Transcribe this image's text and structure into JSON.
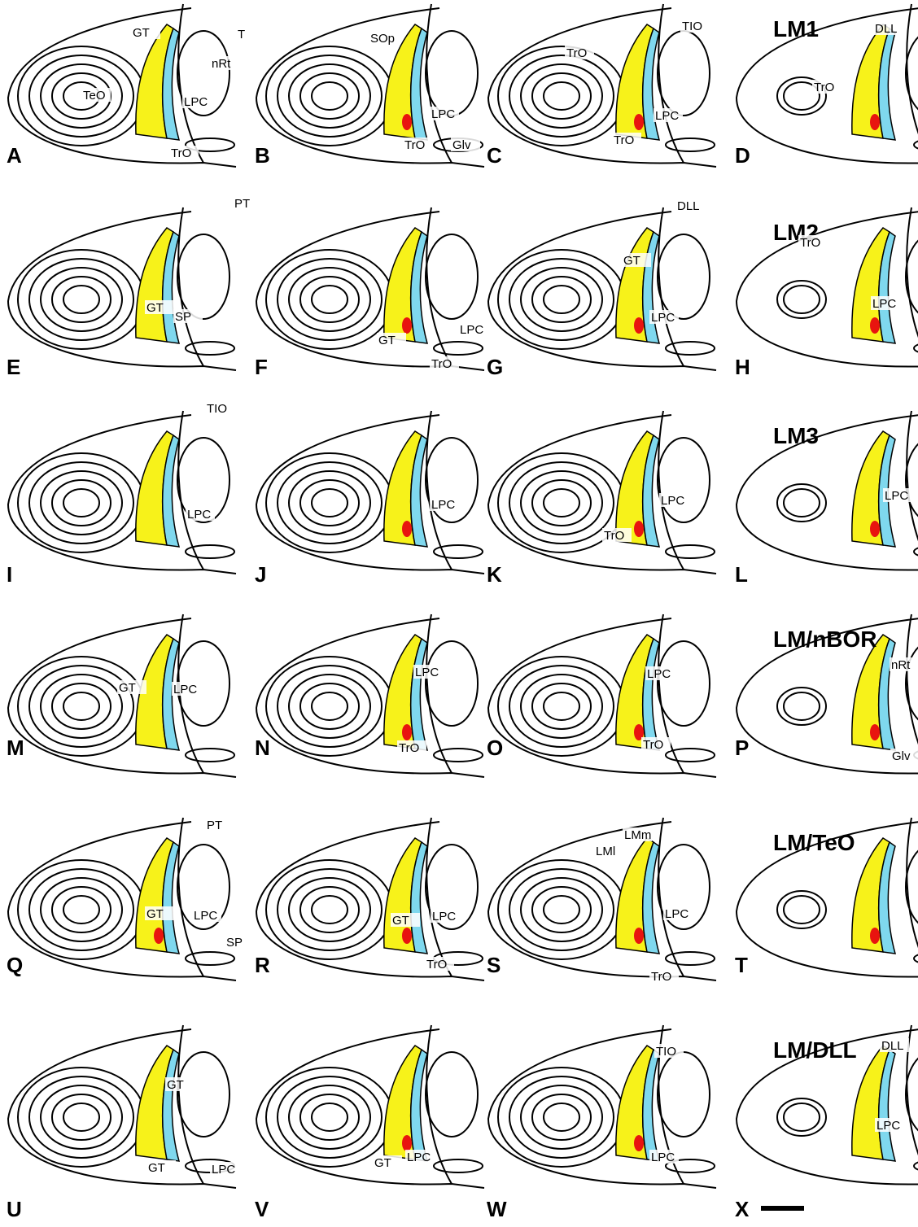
{
  "panels": [
    {
      "letter": "A",
      "labels": [
        "GT",
        "T",
        "nRt",
        "TeO",
        "LPC",
        "TrO"
      ]
    },
    {
      "letter": "B",
      "labels": [
        "SOp",
        "LPC",
        "Glv",
        "TrO"
      ]
    },
    {
      "letter": "C",
      "labels": [
        "TIO",
        "TrO",
        "LPC",
        "TrO"
      ]
    },
    {
      "letter": "D",
      "title": "LM1",
      "labels": [
        "DLL",
        "TrO"
      ]
    },
    {
      "letter": "E",
      "labels": [
        "PT",
        "GT",
        "SP"
      ]
    },
    {
      "letter": "F",
      "labels": [
        "GT",
        "LPC",
        "TrO"
      ]
    },
    {
      "letter": "G",
      "labels": [
        "DLL",
        "GT",
        "LPC"
      ]
    },
    {
      "letter": "H",
      "title": "LM2",
      "labels": [
        "TrO",
        "LPC"
      ]
    },
    {
      "letter": "I",
      "labels": [
        "TIO",
        "LPC"
      ]
    },
    {
      "letter": "J",
      "labels": [
        "LPC"
      ]
    },
    {
      "letter": "K",
      "labels": [
        "LPC",
        "TrO"
      ]
    },
    {
      "letter": "L",
      "title": "LM3",
      "labels": [
        "LPC"
      ]
    },
    {
      "letter": "M",
      "labels": [
        "GT",
        "LPC"
      ]
    },
    {
      "letter": "N",
      "labels": [
        "LPC",
        "TrO"
      ]
    },
    {
      "letter": "O",
      "labels": [
        "LPC",
        "TrO"
      ]
    },
    {
      "letter": "P",
      "title": "LM/nBOR",
      "labels": [
        "nRt",
        "Glv"
      ]
    },
    {
      "letter": "Q",
      "labels": [
        "PT",
        "GT",
        "LPC",
        "SP"
      ]
    },
    {
      "letter": "R",
      "labels": [
        "GT",
        "LPC",
        "TrO"
      ]
    },
    {
      "letter": "S",
      "labels": [
        "LMl",
        "LMm",
        "LPC",
        "TrO"
      ]
    },
    {
      "letter": "T",
      "title": "LM/TeO",
      "labels": []
    },
    {
      "letter": "U",
      "labels": [
        "GT",
        "GT",
        "LPC"
      ]
    },
    {
      "letter": "V",
      "labels": [
        "GT",
        "LPC"
      ]
    },
    {
      "letter": "W",
      "labels": [
        "TIO",
        "LPC"
      ]
    },
    {
      "letter": "X",
      "title": "LM/DLL",
      "labels": [
        "DLL",
        "LPC"
      ]
    }
  ]
}
